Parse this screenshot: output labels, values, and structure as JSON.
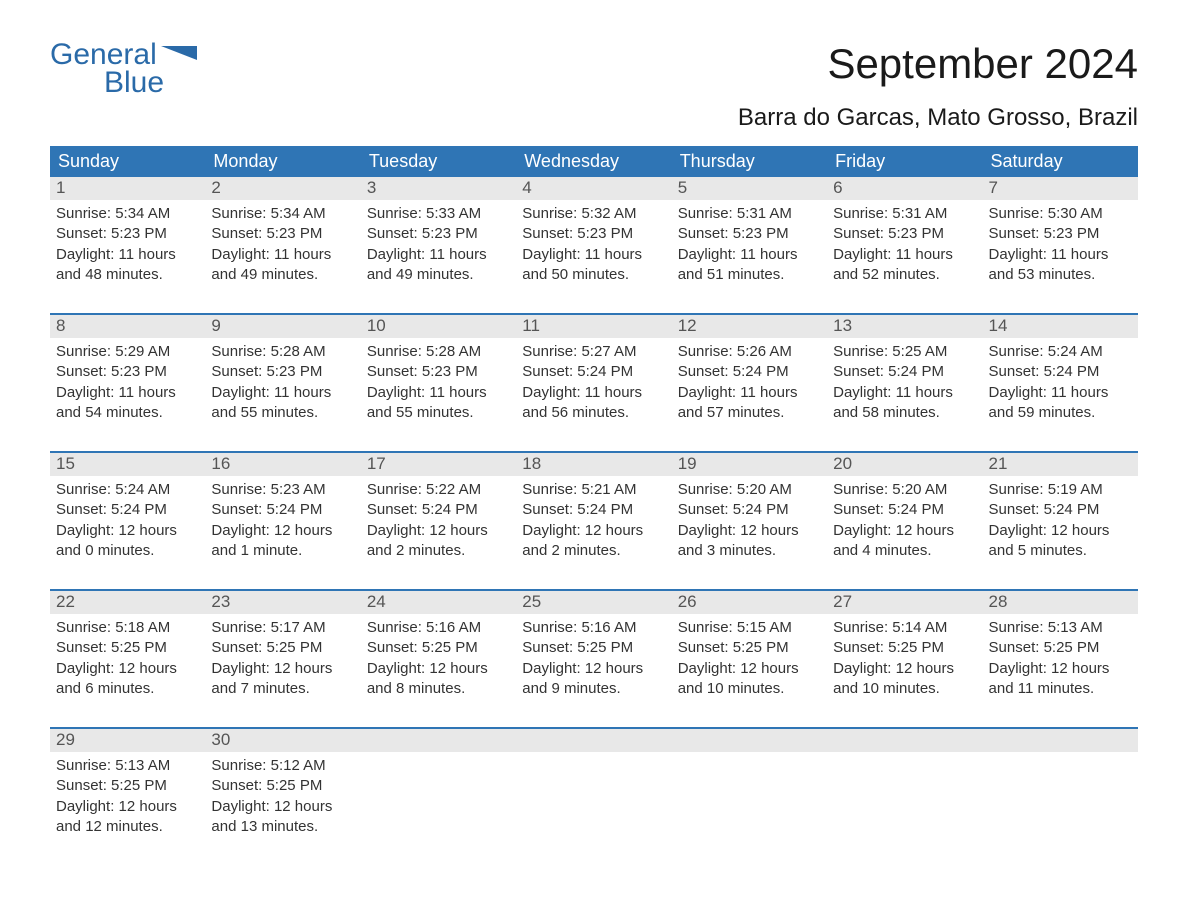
{
  "logo": {
    "text1": "General",
    "text2": "Blue",
    "brand_color": "#2a6aa8"
  },
  "title": "September 2024",
  "subtitle": "Barra do Garcas, Mato Grosso, Brazil",
  "colors": {
    "header_bg": "#2f75b5",
    "header_text": "#ffffff",
    "daynum_bg": "#e8e8e8",
    "daynum_text": "#555555",
    "week_border": "#2f75b5",
    "body_text": "#333333",
    "background": "#ffffff"
  },
  "typography": {
    "title_fontsize": 42,
    "subtitle_fontsize": 24,
    "header_fontsize": 18,
    "daynum_fontsize": 17,
    "body_fontsize": 15,
    "logo_fontsize": 30
  },
  "day_headers": [
    "Sunday",
    "Monday",
    "Tuesday",
    "Wednesday",
    "Thursday",
    "Friday",
    "Saturday"
  ],
  "weeks": [
    [
      {
        "num": "1",
        "sunrise": "Sunrise: 5:34 AM",
        "sunset": "Sunset: 5:23 PM",
        "daylight1": "Daylight: 11 hours",
        "daylight2": "and 48 minutes."
      },
      {
        "num": "2",
        "sunrise": "Sunrise: 5:34 AM",
        "sunset": "Sunset: 5:23 PM",
        "daylight1": "Daylight: 11 hours",
        "daylight2": "and 49 minutes."
      },
      {
        "num": "3",
        "sunrise": "Sunrise: 5:33 AM",
        "sunset": "Sunset: 5:23 PM",
        "daylight1": "Daylight: 11 hours",
        "daylight2": "and 49 minutes."
      },
      {
        "num": "4",
        "sunrise": "Sunrise: 5:32 AM",
        "sunset": "Sunset: 5:23 PM",
        "daylight1": "Daylight: 11 hours",
        "daylight2": "and 50 minutes."
      },
      {
        "num": "5",
        "sunrise": "Sunrise: 5:31 AM",
        "sunset": "Sunset: 5:23 PM",
        "daylight1": "Daylight: 11 hours",
        "daylight2": "and 51 minutes."
      },
      {
        "num": "6",
        "sunrise": "Sunrise: 5:31 AM",
        "sunset": "Sunset: 5:23 PM",
        "daylight1": "Daylight: 11 hours",
        "daylight2": "and 52 minutes."
      },
      {
        "num": "7",
        "sunrise": "Sunrise: 5:30 AM",
        "sunset": "Sunset: 5:23 PM",
        "daylight1": "Daylight: 11 hours",
        "daylight2": "and 53 minutes."
      }
    ],
    [
      {
        "num": "8",
        "sunrise": "Sunrise: 5:29 AM",
        "sunset": "Sunset: 5:23 PM",
        "daylight1": "Daylight: 11 hours",
        "daylight2": "and 54 minutes."
      },
      {
        "num": "9",
        "sunrise": "Sunrise: 5:28 AM",
        "sunset": "Sunset: 5:23 PM",
        "daylight1": "Daylight: 11 hours",
        "daylight2": "and 55 minutes."
      },
      {
        "num": "10",
        "sunrise": "Sunrise: 5:28 AM",
        "sunset": "Sunset: 5:23 PM",
        "daylight1": "Daylight: 11 hours",
        "daylight2": "and 55 minutes."
      },
      {
        "num": "11",
        "sunrise": "Sunrise: 5:27 AM",
        "sunset": "Sunset: 5:24 PM",
        "daylight1": "Daylight: 11 hours",
        "daylight2": "and 56 minutes."
      },
      {
        "num": "12",
        "sunrise": "Sunrise: 5:26 AM",
        "sunset": "Sunset: 5:24 PM",
        "daylight1": "Daylight: 11 hours",
        "daylight2": "and 57 minutes."
      },
      {
        "num": "13",
        "sunrise": "Sunrise: 5:25 AM",
        "sunset": "Sunset: 5:24 PM",
        "daylight1": "Daylight: 11 hours",
        "daylight2": "and 58 minutes."
      },
      {
        "num": "14",
        "sunrise": "Sunrise: 5:24 AM",
        "sunset": "Sunset: 5:24 PM",
        "daylight1": "Daylight: 11 hours",
        "daylight2": "and 59 minutes."
      }
    ],
    [
      {
        "num": "15",
        "sunrise": "Sunrise: 5:24 AM",
        "sunset": "Sunset: 5:24 PM",
        "daylight1": "Daylight: 12 hours",
        "daylight2": "and 0 minutes."
      },
      {
        "num": "16",
        "sunrise": "Sunrise: 5:23 AM",
        "sunset": "Sunset: 5:24 PM",
        "daylight1": "Daylight: 12 hours",
        "daylight2": "and 1 minute."
      },
      {
        "num": "17",
        "sunrise": "Sunrise: 5:22 AM",
        "sunset": "Sunset: 5:24 PM",
        "daylight1": "Daylight: 12 hours",
        "daylight2": "and 2 minutes."
      },
      {
        "num": "18",
        "sunrise": "Sunrise: 5:21 AM",
        "sunset": "Sunset: 5:24 PM",
        "daylight1": "Daylight: 12 hours",
        "daylight2": "and 2 minutes."
      },
      {
        "num": "19",
        "sunrise": "Sunrise: 5:20 AM",
        "sunset": "Sunset: 5:24 PM",
        "daylight1": "Daylight: 12 hours",
        "daylight2": "and 3 minutes."
      },
      {
        "num": "20",
        "sunrise": "Sunrise: 5:20 AM",
        "sunset": "Sunset: 5:24 PM",
        "daylight1": "Daylight: 12 hours",
        "daylight2": "and 4 minutes."
      },
      {
        "num": "21",
        "sunrise": "Sunrise: 5:19 AM",
        "sunset": "Sunset: 5:24 PM",
        "daylight1": "Daylight: 12 hours",
        "daylight2": "and 5 minutes."
      }
    ],
    [
      {
        "num": "22",
        "sunrise": "Sunrise: 5:18 AM",
        "sunset": "Sunset: 5:25 PM",
        "daylight1": "Daylight: 12 hours",
        "daylight2": "and 6 minutes."
      },
      {
        "num": "23",
        "sunrise": "Sunrise: 5:17 AM",
        "sunset": "Sunset: 5:25 PM",
        "daylight1": "Daylight: 12 hours",
        "daylight2": "and 7 minutes."
      },
      {
        "num": "24",
        "sunrise": "Sunrise: 5:16 AM",
        "sunset": "Sunset: 5:25 PM",
        "daylight1": "Daylight: 12 hours",
        "daylight2": "and 8 minutes."
      },
      {
        "num": "25",
        "sunrise": "Sunrise: 5:16 AM",
        "sunset": "Sunset: 5:25 PM",
        "daylight1": "Daylight: 12 hours",
        "daylight2": "and 9 minutes."
      },
      {
        "num": "26",
        "sunrise": "Sunrise: 5:15 AM",
        "sunset": "Sunset: 5:25 PM",
        "daylight1": "Daylight: 12 hours",
        "daylight2": "and 10 minutes."
      },
      {
        "num": "27",
        "sunrise": "Sunrise: 5:14 AM",
        "sunset": "Sunset: 5:25 PM",
        "daylight1": "Daylight: 12 hours",
        "daylight2": "and 10 minutes."
      },
      {
        "num": "28",
        "sunrise": "Sunrise: 5:13 AM",
        "sunset": "Sunset: 5:25 PM",
        "daylight1": "Daylight: 12 hours",
        "daylight2": "and 11 minutes."
      }
    ],
    [
      {
        "num": "29",
        "sunrise": "Sunrise: 5:13 AM",
        "sunset": "Sunset: 5:25 PM",
        "daylight1": "Daylight: 12 hours",
        "daylight2": "and 12 minutes."
      },
      {
        "num": "30",
        "sunrise": "Sunrise: 5:12 AM",
        "sunset": "Sunset: 5:25 PM",
        "daylight1": "Daylight: 12 hours",
        "daylight2": "and 13 minutes."
      },
      null,
      null,
      null,
      null,
      null
    ]
  ]
}
